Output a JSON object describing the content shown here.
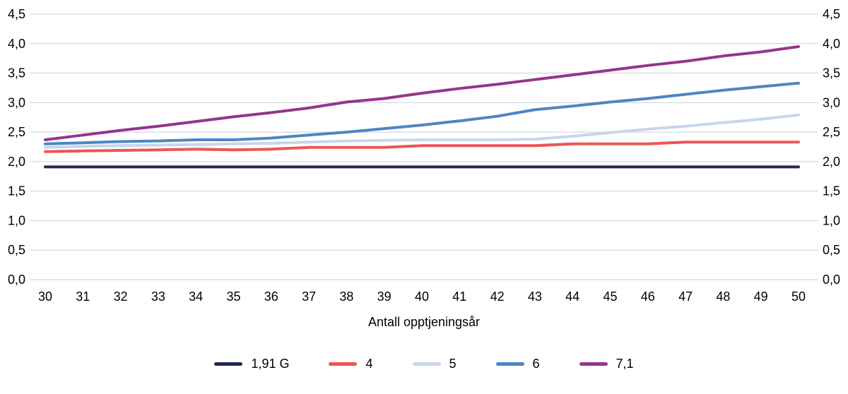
{
  "chart": {
    "xlabel": "Antall opptjeningsår"
  },
  "colors": {
    "grid": "#c6d0dd",
    "tick_text": "#000000"
  },
  "chart_data": {
    "type": "line",
    "title": "",
    "xlabel": "Antall opptjeningsår",
    "ylabel": "",
    "ylim": [
      0,
      4.5
    ],
    "yticks": [
      0,
      0.5,
      1.0,
      1.5,
      2.0,
      2.5,
      3.0,
      3.5,
      4.0,
      4.5
    ],
    "ytick_labels": [
      "0,0",
      "0,5",
      "1,0",
      "1,5",
      "2,0",
      "2,5",
      "3,0",
      "3,5",
      "4,0",
      "4,5"
    ],
    "y_axis_sides": [
      "left",
      "right"
    ],
    "grid": true,
    "legend_position": "bottom",
    "x": [
      30,
      31,
      32,
      33,
      34,
      35,
      36,
      37,
      38,
      39,
      40,
      41,
      42,
      43,
      44,
      45,
      46,
      47,
      48,
      49,
      50
    ],
    "series": [
      {
        "name": "1,91 G",
        "color": "#232759",
        "values": [
          1.91,
          1.91,
          1.91,
          1.91,
          1.91,
          1.91,
          1.91,
          1.91,
          1.91,
          1.91,
          1.91,
          1.91,
          1.91,
          1.91,
          1.91,
          1.91,
          1.91,
          1.91,
          1.91,
          1.91,
          1.91
        ]
      },
      {
        "name": "4",
        "color": "#ec5653",
        "values": [
          2.17,
          2.18,
          2.19,
          2.2,
          2.21,
          2.2,
          2.21,
          2.24,
          2.24,
          2.24,
          2.27,
          2.27,
          2.27,
          2.27,
          2.3,
          2.3,
          2.3,
          2.33,
          2.33,
          2.33,
          2.33
        ]
      },
      {
        "name": "5",
        "color": "#c9d5ea",
        "values": [
          2.24,
          2.26,
          2.27,
          2.28,
          2.29,
          2.3,
          2.31,
          2.33,
          2.35,
          2.36,
          2.37,
          2.37,
          2.37,
          2.38,
          2.43,
          2.49,
          2.55,
          2.6,
          2.66,
          2.72,
          2.79
        ]
      },
      {
        "name": "6",
        "color": "#4e86c1",
        "values": [
          2.3,
          2.32,
          2.34,
          2.35,
          2.37,
          2.37,
          2.4,
          2.45,
          2.5,
          2.56,
          2.62,
          2.69,
          2.77,
          2.88,
          2.94,
          3.01,
          3.07,
          3.14,
          3.21,
          3.27,
          3.33
        ]
      },
      {
        "name": "7,1",
        "color": "#94368f",
        "values": [
          2.37,
          2.45,
          2.53,
          2.6,
          2.68,
          2.76,
          2.83,
          2.91,
          3.01,
          3.07,
          3.16,
          3.24,
          3.31,
          3.39,
          3.47,
          3.55,
          3.63,
          3.7,
          3.79,
          3.86,
          3.95
        ]
      }
    ]
  }
}
